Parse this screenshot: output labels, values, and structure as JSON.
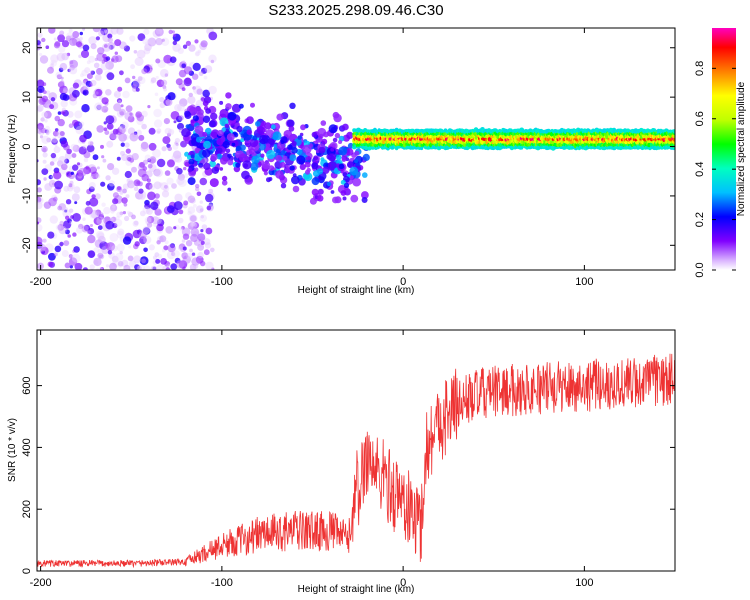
{
  "title": "S233.2025.298.09.46.C30",
  "chart_data": [
    {
      "type": "heatmap",
      "name": "spectrogram",
      "xlabel": "Height of straight line (km)",
      "ylabel": "Frequency (Hz)",
      "xlim": [
        -202,
        150
      ],
      "ylim": [
        -25,
        24
      ],
      "xticks": [
        -200,
        -100,
        0,
        100
      ],
      "yticks": [
        -20,
        -10,
        0,
        10,
        20
      ],
      "tick_labels_x": [
        "-200",
        "-100",
        "0",
        "100"
      ],
      "tick_labels_y": [
        "-20",
        "-10",
        "0",
        "10",
        "20"
      ],
      "description_regions": [
        {
          "x_range": [
            -202,
            -120
          ],
          "freq_range": [
            -25,
            24
          ],
          "amplitude": [
            0.02,
            0.2
          ]
        },
        {
          "x_range": [
            -120,
            -20
          ],
          "freq_center_start": 2,
          "freq_center_end": -4,
          "amplitude": [
            0.1,
            0.35
          ]
        },
        {
          "x_range": [
            -27,
            150
          ],
          "freq_center": 1.5,
          "amplitude": [
            0.3,
            0.98
          ]
        }
      ],
      "colorbar": {
        "label": "Normalized spectral amplitude",
        "ticks": [
          0.0,
          0.2,
          0.4,
          0.6,
          0.8
        ],
        "tick_labels": [
          "0.0",
          "0.2",
          "0.4",
          "0.6",
          "0.8"
        ],
        "range": [
          0,
          0.96
        ]
      }
    },
    {
      "type": "line",
      "name": "snr",
      "xlabel": "Height of straight line (km)",
      "ylabel": "SNR (10 * v/v)",
      "xlim": [
        -202,
        150
      ],
      "ylim": [
        0,
        780
      ],
      "xticks": [
        -200,
        -100,
        0,
        100
      ],
      "yticks": [
        0,
        200,
        400,
        600
      ],
      "tick_labels_x": [
        "-200",
        "-100",
        "0",
        "100"
      ],
      "tick_labels_y": [
        "0",
        "200",
        "400",
        "600"
      ],
      "color": "#ee3333",
      "series": [
        {
          "name": "SNR",
          "x": [
            -200,
            -150,
            -120,
            -100,
            -80,
            -60,
            -40,
            -30,
            -25,
            -20,
            -15,
            -10,
            -5,
            0,
            5,
            10,
            12,
            15,
            20,
            30,
            40,
            50,
            70,
            100,
            130,
            150
          ],
          "y": [
            20,
            20,
            25,
            70,
            100,
            110,
            110,
            90,
            240,
            380,
            320,
            300,
            250,
            230,
            180,
            150,
            380,
            430,
            480,
            540,
            570,
            580,
            590,
            600,
            610,
            620
          ]
        }
      ]
    }
  ]
}
